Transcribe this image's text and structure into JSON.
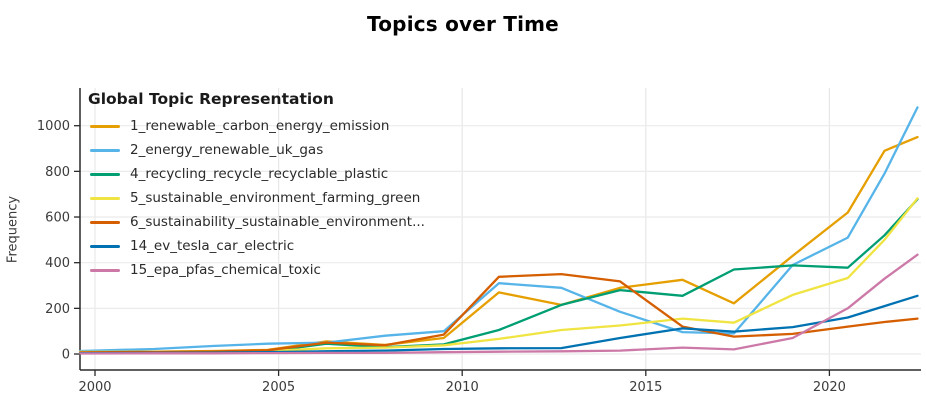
{
  "chart_data": {
    "type": "line",
    "title": "Topics over Time",
    "ylabel": "Frequency",
    "legend_title": "Global Topic Representation",
    "grid": true,
    "legend_position": "top-left",
    "xlim": [
      1999.55,
      2022.55
    ],
    "ylim": [
      -70,
      1167
    ],
    "xticks": {
      "labels": [
        "2000",
        "2005",
        "2010",
        "2015",
        "2020"
      ],
      "years": [
        2000,
        2005,
        2010,
        2015,
        2020
      ]
    },
    "yticks": {
      "labels": [
        "0",
        "200",
        "400",
        "600",
        "800",
        "1000"
      ],
      "values": [
        0,
        200,
        400,
        600,
        800,
        1000
      ]
    },
    "x": [
      1999.6,
      2001.6,
      2003.2,
      2004.7,
      2006.3,
      2007.9,
      2009.5,
      2011.0,
      2012.7,
      2014.3,
      2016.0,
      2017.4,
      2019.0,
      2020.5,
      2021.5,
      2022.4
    ],
    "series": [
      {
        "name": "1_renewable_carbon_energy_emission",
        "color": "#E69F00",
        "values": [
          8,
          10,
          13,
          18,
          55,
          40,
          70,
          270,
          215,
          290,
          325,
          222,
          430,
          620,
          890,
          950
        ]
      },
      {
        "name": "2_energy_renewable_uk_gas",
        "color": "#56B4E9",
        "values": [
          13,
          22,
          35,
          45,
          50,
          80,
          100,
          310,
          290,
          185,
          96,
          90,
          390,
          510,
          790,
          1080
        ]
      },
      {
        "name": "4_recycling_recycle_recyclable_plastic",
        "color": "#009E73",
        "values": [
          5,
          6,
          8,
          12,
          45,
          30,
          42,
          105,
          215,
          280,
          255,
          370,
          388,
          378,
          520,
          678
        ]
      },
      {
        "name": "5_sustainable_environment_farming_green",
        "color": "#F0E442",
        "values": [
          9,
          10,
          11,
          13,
          25,
          28,
          38,
          66,
          105,
          125,
          155,
          137,
          259,
          333,
          500,
          682
        ]
      },
      {
        "name": "6_sustainability_sustainable_environment...",
        "color": "#D55E00",
        "values": [
          7,
          9,
          11,
          16,
          50,
          38,
          85,
          338,
          350,
          318,
          120,
          76,
          88,
          120,
          140,
          155
        ]
      },
      {
        "name": "14_ev_tesla_car_electric",
        "color": "#0072B2",
        "values": [
          4,
          5,
          6,
          8,
          12,
          15,
          22,
          25,
          26,
          70,
          112,
          98,
          118,
          160,
          210,
          255
        ]
      },
      {
        "name": "15_epa_pfas_chemical_toxic",
        "color": "#CC79A7",
        "values": [
          2,
          3,
          3,
          4,
          5,
          5,
          8,
          10,
          12,
          15,
          28,
          20,
          70,
          200,
          330,
          435
        ]
      }
    ]
  }
}
